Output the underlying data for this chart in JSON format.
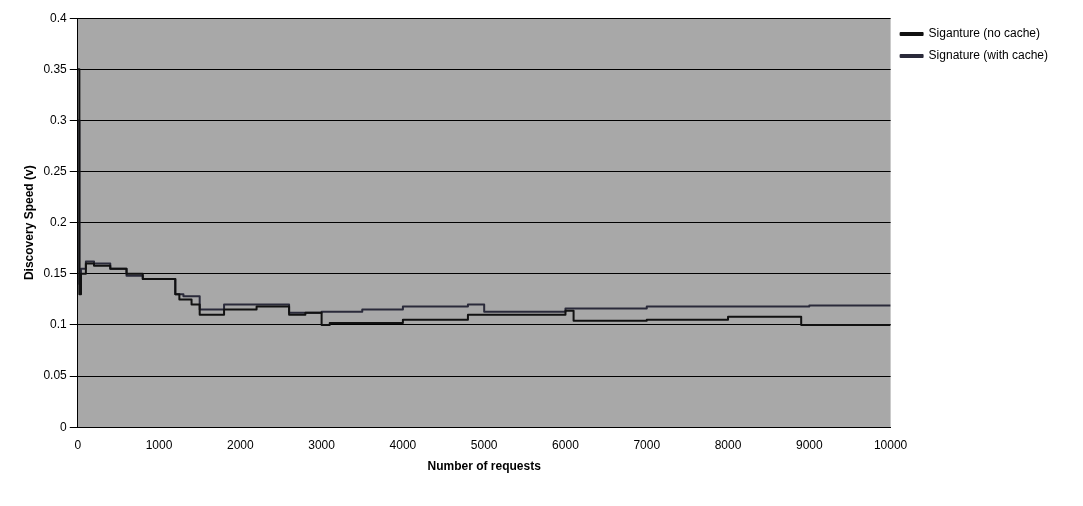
{
  "chart_data": {
    "type": "step",
    "xlabel": "Number of requests",
    "ylabel": "Discovery Speed (v)",
    "xlim": [
      0,
      10000
    ],
    "xticks": [
      0,
      1000,
      2000,
      3000,
      4000,
      5000,
      6000,
      7000,
      8000,
      9000,
      10000
    ],
    "ylim": [
      0,
      0.4
    ],
    "yticks": [
      0,
      0.05,
      0.1,
      0.15,
      0.2,
      0.25,
      0.3,
      0.35,
      0.4
    ],
    "grid": "y",
    "legend": "top right",
    "marker": "none",
    "line_style": "solid",
    "series": [
      {
        "name": "Siganture (no cache)",
        "color": "#111111",
        "x": [
          0,
          20,
          40,
          100,
          200,
          400,
          600,
          800,
          1000,
          1200,
          1250,
          1400,
          1500,
          1800,
          2200,
          2600,
          2800,
          3000,
          3100,
          4000,
          4800,
          5000,
          6000,
          6100,
          7000,
          8000,
          8900,
          9000,
          10000
        ],
        "values": [
          0.35,
          0.13,
          0.15,
          0.16,
          0.158,
          0.155,
          0.15,
          0.145,
          0.145,
          0.13,
          0.125,
          0.12,
          0.11,
          0.115,
          0.118,
          0.11,
          0.112,
          0.1,
          0.102,
          0.105,
          0.11,
          0.11,
          0.114,
          0.104,
          0.105,
          0.108,
          0.1,
          0.1,
          0.1
        ]
      },
      {
        "name": "Signature (with cache)",
        "color": "#2a2a3a",
        "x": [
          0,
          20,
          40,
          100,
          200,
          400,
          600,
          800,
          1000,
          1200,
          1300,
          1500,
          1800,
          2200,
          2600,
          3000,
          3500,
          4000,
          4800,
          5000,
          6000,
          7000,
          8000,
          9000,
          10000
        ],
        "values": [
          0.3,
          0.14,
          0.155,
          0.162,
          0.16,
          0.155,
          0.148,
          0.145,
          0.145,
          0.13,
          0.128,
          0.115,
          0.12,
          0.12,
          0.112,
          0.113,
          0.115,
          0.118,
          0.12,
          0.113,
          0.116,
          0.118,
          0.118,
          0.119,
          0.119
        ]
      }
    ]
  }
}
